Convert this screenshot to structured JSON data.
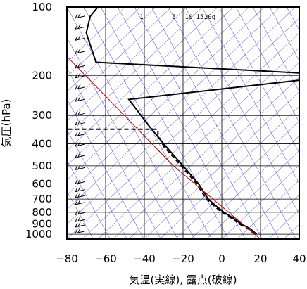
{
  "chart_data": {
    "type": "line",
    "title": "",
    "xlabel": "気温(実線), 露点(破線)",
    "ylabel": "気圧(hPa)",
    "x_scale": "linear",
    "y_scale": "log-reversed",
    "xlim": [
      -80,
      40
    ],
    "ylim": [
      1050,
      100
    ],
    "x_ticks": [
      -80,
      -60,
      -40,
      -20,
      0,
      20,
      40
    ],
    "x_tick_labels": [
      "−80",
      "−60",
      "−40",
      "−20",
      "0",
      "20",
      "40"
    ],
    "y_ticks": [
      100,
      200,
      300,
      400,
      500,
      600,
      700,
      800,
      900,
      1000
    ],
    "y_tick_labels": [
      "100",
      "200",
      "300",
      "400",
      "500",
      "600",
      "700",
      "800",
      "900",
      "1000"
    ],
    "grid": true,
    "mixing_ratio_labels": [
      "1",
      "5",
      "10",
      "15",
      "20g"
    ],
    "series": [
      {
        "role": "temperature",
        "style": "solid",
        "color": "#000000",
        "points": [
          [
            18,
            1000
          ],
          [
            15,
            950
          ],
          [
            10,
            900
          ],
          [
            6,
            850
          ],
          [
            1,
            800
          ],
          [
            -3,
            750
          ],
          [
            -7,
            700
          ],
          [
            -12,
            600
          ],
          [
            -20,
            500
          ],
          [
            -30,
            400
          ],
          [
            -38,
            330
          ],
          [
            -48,
            255
          ],
          [
            40,
            210
          ],
          [
            40,
            195
          ],
          [
            -65,
            175
          ],
          [
            -70,
            130
          ],
          [
            -68,
            110
          ],
          [
            -64,
            100
          ]
        ]
      },
      {
        "role": "dewpoint",
        "style": "dashed",
        "color": "#000000",
        "points": [
          [
            17,
            1000
          ],
          [
            14,
            950
          ],
          [
            9,
            900
          ],
          [
            5,
            850
          ],
          [
            0,
            800
          ],
          [
            -4,
            750
          ],
          [
            -8,
            700
          ],
          [
            -13,
            600
          ],
          [
            -21,
            500
          ],
          [
            -30,
            410
          ],
          [
            -33,
            365
          ],
          [
            -33,
            345
          ],
          [
            -80,
            345
          ]
        ]
      },
      {
        "role": "reference-curve",
        "style": "solid",
        "color": "#cc0000",
        "points": [
          [
            20,
            1050
          ],
          [
            -25,
            500
          ],
          [
            -80,
            165
          ]
        ]
      }
    ]
  }
}
